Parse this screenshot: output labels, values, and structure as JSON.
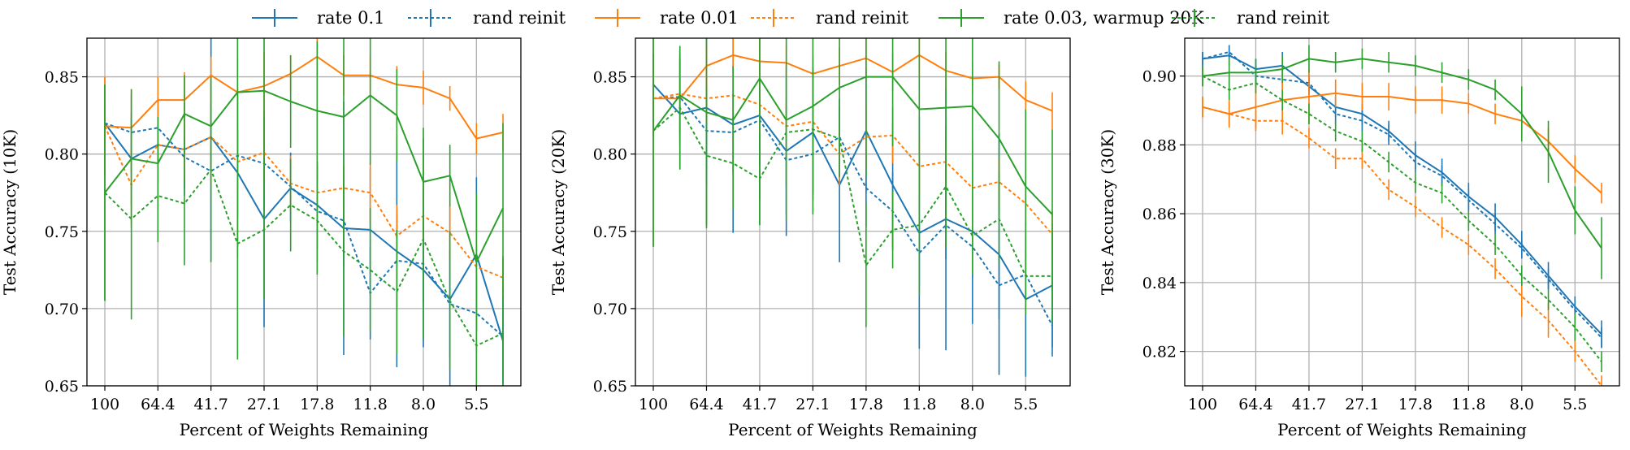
{
  "legend": [
    {
      "label": "rate 0.1",
      "color": "#1f77b4",
      "dashed": false
    },
    {
      "label": "rand reinit",
      "color": "#1f77b4",
      "dashed": true
    },
    {
      "label": "rate 0.01",
      "color": "#ff7f0e",
      "dashed": false
    },
    {
      "label": "rand reinit",
      "color": "#ff7f0e",
      "dashed": true
    },
    {
      "label": "rate 0.03, warmup 20K",
      "color": "#2ca02c",
      "dashed": false
    },
    {
      "label": "rand reinit",
      "color": "#2ca02c",
      "dashed": true
    }
  ],
  "chart_data": [
    {
      "type": "line",
      "xlabel": "Percent of Weights Remaining",
      "ylabel": "Test Accuracy (10K)",
      "x": [
        100,
        80.0,
        64.4,
        51.4,
        41.7,
        33.3,
        27.1,
        21.8,
        17.8,
        14.3,
        11.8,
        9.6,
        8.0,
        6.6,
        5.5,
        4.5
      ],
      "x_ticks": [
        "100",
        "64.4",
        "41.7",
        "27.1",
        "17.8",
        "11.8",
        "8.0",
        "5.5"
      ],
      "ylim": [
        0.65,
        0.875
      ],
      "y_ticks": [
        "0.65",
        "0.70",
        "0.75",
        "0.80",
        "0.85"
      ],
      "grid": true,
      "series": [
        {
          "name": "rate 0.1",
          "color": "#1f77b4",
          "dashed": false,
          "values": [
            0.82,
            0.797,
            0.806,
            0.803,
            0.811,
            0.788,
            0.758,
            0.778,
            0.767,
            0.752,
            0.751,
            0.737,
            0.725,
            0.706,
            0.735,
            0.679
          ],
          "err": [
            0.012,
            0.03,
            0.025,
            0.03,
            0.08,
            0.055,
            0.07,
            0.022,
            0.028,
            0.082,
            0.04,
            0.075,
            0.05,
            0.06,
            0.05,
            0.03
          ]
        },
        {
          "name": "rand reinit",
          "color": "#1f77b4",
          "dashed": true,
          "values": [
            0.82,
            0.814,
            0.817,
            0.798,
            0.789,
            0.799,
            0.794,
            0.779,
            0.763,
            0.757,
            0.71,
            0.731,
            0.729,
            0.703,
            0.697,
            0.682
          ],
          "err": [
            0.012,
            0.025,
            0.02,
            0.02,
            0.045,
            0.04,
            0.03,
            0.022,
            0.032,
            0.03,
            0.03,
            0.03,
            0.025,
            0.035,
            0.025,
            0.03
          ]
        },
        {
          "name": "rate 0.01",
          "color": "#ff7f0e",
          "dashed": false,
          "values": [
            0.818,
            0.817,
            0.835,
            0.835,
            0.851,
            0.84,
            0.844,
            0.852,
            0.863,
            0.851,
            0.851,
            0.845,
            0.843,
            0.836,
            0.81,
            0.814
          ],
          "err": [
            0.032,
            0.025,
            0.015,
            0.018,
            0.012,
            0.022,
            0.022,
            0.012,
            0.012,
            0.013,
            0.012,
            0.012,
            0.011,
            0.008,
            0.01,
            0.012
          ]
        },
        {
          "name": "rand reinit",
          "color": "#ff7f0e",
          "dashed": true,
          "values": [
            0.818,
            0.78,
            0.806,
            0.803,
            0.811,
            0.795,
            0.801,
            0.781,
            0.775,
            0.778,
            0.775,
            0.747,
            0.76,
            0.749,
            0.727,
            0.72
          ],
          "err": [
            0.032,
            0.025,
            0.015,
            0.02,
            0.03,
            0.02,
            0.02,
            0.018,
            0.02,
            0.015,
            0.02,
            0.02,
            0.018,
            0.018,
            0.015,
            0.012
          ]
        },
        {
          "name": "rate 0.03, warmup 20K",
          "color": "#2ca02c",
          "dashed": false,
          "values": [
            0.775,
            0.797,
            0.794,
            0.826,
            0.818,
            0.84,
            0.841,
            0.834,
            0.828,
            0.824,
            0.838,
            0.825,
            0.782,
            0.786,
            0.73,
            0.765
          ],
          "err": [
            0.07,
            0.045,
            0.03,
            0.025,
            0.03,
            0.1,
            0.06,
            0.03,
            0.045,
            0.085,
            0.045,
            0.03,
            0.035,
            0.02,
            0.045,
            0.055
          ]
        },
        {
          "name": "rand reinit",
          "color": "#2ca02c",
          "dashed": true,
          "values": [
            0.775,
            0.758,
            0.773,
            0.768,
            0.79,
            0.742,
            0.751,
            0.767,
            0.757,
            0.737,
            0.725,
            0.711,
            0.745,
            0.705,
            0.676,
            0.684
          ],
          "err": [
            0.07,
            0.065,
            0.03,
            0.04,
            0.06,
            0.075,
            0.045,
            0.03,
            0.035,
            0.055,
            0.04,
            0.04,
            0.065,
            0.045,
            0.04,
            0.05
          ]
        }
      ]
    },
    {
      "type": "line",
      "xlabel": "Percent of Weights Remaining",
      "ylabel": "Test Accuracy (20K)",
      "x": [
        100,
        80.0,
        64.4,
        51.4,
        41.7,
        33.3,
        27.1,
        21.8,
        17.8,
        14.3,
        11.8,
        9.6,
        8.0,
        6.6,
        5.5,
        4.5
      ],
      "x_ticks": [
        "100",
        "64.4",
        "41.7",
        "27.1",
        "17.8",
        "11.8",
        "8.0",
        "5.5"
      ],
      "ylim": [
        0.65,
        0.875
      ],
      "y_ticks": [
        "0.65",
        "0.70",
        "0.75",
        "0.80",
        "0.85"
      ],
      "grid": true,
      "series": [
        {
          "name": "rate 0.1",
          "color": "#1f77b4",
          "dashed": false,
          "values": [
            0.845,
            0.826,
            0.83,
            0.819,
            0.825,
            0.802,
            0.814,
            0.78,
            0.815,
            0.78,
            0.749,
            0.758,
            0.75,
            0.735,
            0.706,
            0.715
          ],
          "err": [
            0.02,
            0.035,
            0.05,
            0.07,
            0.055,
            0.055,
            0.04,
            0.05,
            0.04,
            0.04,
            0.075,
            0.085,
            0.06,
            0.078,
            0.05,
            0.04
          ]
        },
        {
          "name": "rand reinit",
          "color": "#1f77b4",
          "dashed": true,
          "values": [
            0.836,
            0.837,
            0.815,
            0.814,
            0.822,
            0.796,
            0.8,
            0.811,
            0.778,
            0.763,
            0.736,
            0.754,
            0.74,
            0.715,
            0.722,
            0.689
          ],
          "err": [
            0.02,
            0.025,
            0.025,
            0.025,
            0.03,
            0.035,
            0.03,
            0.025,
            0.025,
            0.025,
            0.022,
            0.022,
            0.02,
            0.022,
            0.015,
            0.02
          ]
        },
        {
          "name": "rate 0.01",
          "color": "#ff7f0e",
          "dashed": false,
          "values": [
            0.836,
            0.836,
            0.857,
            0.864,
            0.86,
            0.859,
            0.852,
            0.857,
            0.862,
            0.853,
            0.864,
            0.854,
            0.849,
            0.85,
            0.835,
            0.828
          ],
          "err": [
            0.025,
            0.03,
            0.015,
            0.012,
            0.015,
            0.012,
            0.012,
            0.012,
            0.015,
            0.012,
            0.015,
            0.012,
            0.01,
            0.008,
            0.012,
            0.012
          ]
        },
        {
          "name": "rand reinit",
          "color": "#ff7f0e",
          "dashed": true,
          "values": [
            0.836,
            0.839,
            0.836,
            0.838,
            0.832,
            0.818,
            0.821,
            0.8,
            0.811,
            0.812,
            0.792,
            0.795,
            0.778,
            0.782,
            0.768,
            0.748
          ],
          "err": [
            0.025,
            0.025,
            0.015,
            0.018,
            0.02,
            0.02,
            0.02,
            0.02,
            0.02,
            0.018,
            0.018,
            0.018,
            0.018,
            0.015,
            0.015,
            0.015
          ]
        },
        {
          "name": "rate 0.03, warmup 20K",
          "color": "#2ca02c",
          "dashed": false,
          "values": [
            0.815,
            0.838,
            0.827,
            0.822,
            0.849,
            0.822,
            0.831,
            0.843,
            0.85,
            0.85,
            0.829,
            0.83,
            0.831,
            0.81,
            0.779,
            0.761
          ],
          "err": [
            0.075,
            0.03,
            0.075,
            0.035,
            0.095,
            0.065,
            0.07,
            0.04,
            0.065,
            0.045,
            0.09,
            0.08,
            0.06,
            0.05,
            0.05,
            0.055
          ]
        },
        {
          "name": "rand reinit",
          "color": "#2ca02c",
          "dashed": true,
          "values": [
            0.815,
            0.83,
            0.799,
            0.794,
            0.784,
            0.814,
            0.816,
            0.81,
            0.728,
            0.751,
            0.754,
            0.779,
            0.747,
            0.758,
            0.721,
            0.721
          ],
          "err": [
            0.075,
            0.04,
            0.045,
            0.03,
            0.03,
            0.035,
            0.04,
            0.025,
            0.04,
            0.025,
            0.045,
            0.04,
            0.025,
            0.03,
            0.025,
            0.03
          ]
        }
      ]
    },
    {
      "type": "line",
      "xlabel": "Percent of Weights Remaining",
      "ylabel": "Test Accuracy (30K)",
      "x": [
        100,
        80.0,
        64.4,
        51.4,
        41.7,
        33.3,
        27.1,
        21.8,
        17.8,
        14.3,
        11.8,
        9.6,
        8.0,
        6.6,
        5.5,
        4.5
      ],
      "x_ticks": [
        "100",
        "64.4",
        "41.7",
        "27.1",
        "17.8",
        "11.8",
        "8.0",
        "5.5"
      ],
      "ylim": [
        0.81,
        0.911
      ],
      "y_ticks": [
        "0.82",
        "0.84",
        "0.86",
        "0.88",
        "0.90"
      ],
      "grid": true,
      "series": [
        {
          "name": "rate 0.1",
          "color": "#1f77b4",
          "dashed": false,
          "values": [
            0.905,
            0.906,
            0.902,
            0.903,
            0.897,
            0.891,
            0.889,
            0.884,
            0.877,
            0.872,
            0.865,
            0.859,
            0.851,
            0.842,
            0.833,
            0.825
          ],
          "err": [
            0.002,
            0.003,
            0.003,
            0.004,
            0.003,
            0.003,
            0.003,
            0.003,
            0.004,
            0.004,
            0.004,
            0.004,
            0.004,
            0.004,
            0.003,
            0.004
          ]
        },
        {
          "name": "rand reinit",
          "color": "#1f77b4",
          "dashed": true,
          "values": [
            0.905,
            0.907,
            0.9,
            0.899,
            0.898,
            0.889,
            0.887,
            0.883,
            0.875,
            0.871,
            0.864,
            0.857,
            0.85,
            0.841,
            0.832,
            0.824
          ],
          "err": [
            0.002,
            0.002,
            0.003,
            0.003,
            0.003,
            0.003,
            0.003,
            0.003,
            0.003,
            0.003,
            0.003,
            0.003,
            0.003,
            0.003,
            0.003,
            0.003
          ]
        },
        {
          "name": "rate 0.01",
          "color": "#ff7f0e",
          "dashed": false,
          "values": [
            0.891,
            0.889,
            0.891,
            0.893,
            0.894,
            0.895,
            0.894,
            0.894,
            0.893,
            0.893,
            0.892,
            0.889,
            0.887,
            0.881,
            0.873,
            0.866
          ],
          "err": [
            0.003,
            0.004,
            0.006,
            0.006,
            0.008,
            0.004,
            0.004,
            0.004,
            0.004,
            0.004,
            0.003,
            0.003,
            0.003,
            0.004,
            0.004,
            0.003
          ]
        },
        {
          "name": "rand reinit",
          "color": "#ff7f0e",
          "dashed": true,
          "values": [
            0.891,
            0.889,
            0.887,
            0.887,
            0.882,
            0.876,
            0.876,
            0.867,
            0.862,
            0.856,
            0.851,
            0.844,
            0.836,
            0.829,
            0.82,
            0.81
          ],
          "err": [
            0.003,
            0.003,
            0.003,
            0.004,
            0.003,
            0.003,
            0.003,
            0.003,
            0.003,
            0.003,
            0.003,
            0.003,
            0.006,
            0.005,
            0.003,
            0.003
          ]
        },
        {
          "name": "rate 0.03, warmup 20K",
          "color": "#2ca02c",
          "dashed": false,
          "values": [
            0.9,
            0.901,
            0.901,
            0.902,
            0.905,
            0.904,
            0.905,
            0.904,
            0.903,
            0.901,
            0.899,
            0.896,
            0.889,
            0.878,
            0.861,
            0.85
          ],
          "err": [
            0.003,
            0.004,
            0.004,
            0.004,
            0.004,
            0.003,
            0.003,
            0.003,
            0.003,
            0.003,
            0.003,
            0.003,
            0.008,
            0.009,
            0.007,
            0.009
          ]
        },
        {
          "name": "rand reinit",
          "color": "#2ca02c",
          "dashed": true,
          "values": [
            0.9,
            0.896,
            0.898,
            0.893,
            0.889,
            0.884,
            0.881,
            0.875,
            0.869,
            0.866,
            0.858,
            0.851,
            0.842,
            0.835,
            0.827,
            0.817
          ],
          "err": [
            0.003,
            0.003,
            0.003,
            0.003,
            0.003,
            0.003,
            0.003,
            0.003,
            0.003,
            0.003,
            0.003,
            0.003,
            0.003,
            0.003,
            0.004,
            0.003
          ]
        }
      ]
    }
  ]
}
